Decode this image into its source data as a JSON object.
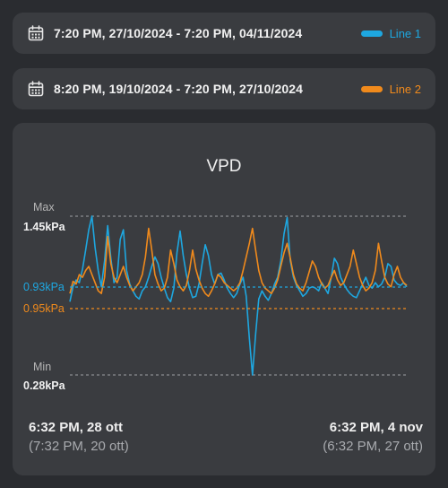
{
  "ranges": [
    {
      "text": "7:20 PM,  27/10/2024 - 7:20 PM,  04/11/2024",
      "legend": "Line 1",
      "color": "#1ea7e0",
      "icon": "calendar-icon"
    },
    {
      "text": "8:20 PM,  19/10/2024 - 7:20 PM,  27/10/2024",
      "legend": "Line 2",
      "color": "#f08a1c",
      "icon": "calendar-icon"
    }
  ],
  "footer": {
    "left_primary": "6:32 PM,  28 ott",
    "left_secondary": "(7:32 PM,  20 ott)",
    "right_primary": "6:32 PM,  4 nov",
    "right_secondary": "(6:32 PM,  27 ott)"
  },
  "chart_data": {
    "type": "line",
    "title": "VPD",
    "unit": "kPa",
    "max_label": "Max",
    "max_value_label": "1.45kPa",
    "min_label": "Min",
    "min_value_label": "0.28kPa",
    "ylim": [
      0.28,
      1.45
    ],
    "grid": false,
    "reference_lines": [
      {
        "label": "0.93kPa",
        "value": 0.93,
        "series": "Line 1"
      },
      {
        "label": "0.95kPa",
        "value": 0.95,
        "series": "Line 2"
      }
    ],
    "series": [
      {
        "name": "Line 1",
        "color": "#1ea7e0",
        "values": [
          0.82,
          0.93,
          0.98,
          0.96,
          1.06,
          1.2,
          1.35,
          1.45,
          1.22,
          1.05,
          0.93,
          1.12,
          1.38,
          1.14,
          0.96,
          1.0,
          1.28,
          1.35,
          1.05,
          0.95,
          0.9,
          0.86,
          0.84,
          0.9,
          0.93,
          1.0,
          1.08,
          1.15,
          1.1,
          1.0,
          0.92,
          0.85,
          0.82,
          0.92,
          1.18,
          1.34,
          1.16,
          1.02,
          0.92,
          0.85,
          0.86,
          0.95,
          1.1,
          1.24,
          1.16,
          1.02,
          0.95,
          1.02,
          1.03,
          0.98,
          0.92,
          0.88,
          0.85,
          0.88,
          0.95,
          1.0,
          0.86,
          0.55,
          0.28,
          0.58,
          0.84,
          0.9,
          0.86,
          0.83,
          0.88,
          0.95,
          1.0,
          1.12,
          1.32,
          1.44,
          1.12,
          1.0,
          0.94,
          0.9,
          0.86,
          0.88,
          0.92,
          0.93,
          0.92,
          0.9,
          0.96,
          0.92,
          0.88,
          1.0,
          1.14,
          1.1,
          1.0,
          0.95,
          0.91,
          0.88,
          0.86,
          0.85,
          0.9,
          0.95,
          1.0,
          0.94,
          0.92,
          0.96,
          0.93,
          0.95,
          1.0,
          1.1,
          1.08,
          0.98,
          0.95,
          0.94,
          0.96,
          0.93
        ]
      },
      {
        "name": "Line 2",
        "color": "#f08a1c",
        "values": [
          0.88,
          0.97,
          0.95,
          1.02,
          1.0,
          1.05,
          1.08,
          1.02,
          0.96,
          0.9,
          0.88,
          1.0,
          1.3,
          1.1,
          1.0,
          0.96,
          1.02,
          1.08,
          1.0,
          0.94,
          0.9,
          0.93,
          0.96,
          1.02,
          1.15,
          1.36,
          1.2,
          1.02,
          0.95,
          0.9,
          0.92,
          1.0,
          1.2,
          1.1,
          0.98,
          0.93,
          0.9,
          0.94,
          1.05,
          1.2,
          1.06,
          0.98,
          0.92,
          0.88,
          0.86,
          0.9,
          0.95,
          1.02,
          1.0,
          0.96,
          0.94,
          0.92,
          0.9,
          0.92,
          0.96,
          1.05,
          1.15,
          1.25,
          1.36,
          1.2,
          1.05,
          0.96,
          0.92,
          0.9,
          0.88,
          0.92,
          0.98,
          1.08,
          1.18,
          1.25,
          1.14,
          1.02,
          0.95,
          0.92,
          0.9,
          0.96,
          1.04,
          1.12,
          1.08,
          1.0,
          0.95,
          0.92,
          0.94,
          1.0,
          1.05,
          0.98,
          0.94,
          0.96,
          1.02,
          1.08,
          1.2,
          1.1,
          1.0,
          0.94,
          0.9,
          0.92,
          0.96,
          1.05,
          1.25,
          1.12,
          1.0,
          0.95,
          0.93,
          1.02,
          1.08,
          1.0,
          0.96,
          0.94
        ]
      }
    ]
  }
}
